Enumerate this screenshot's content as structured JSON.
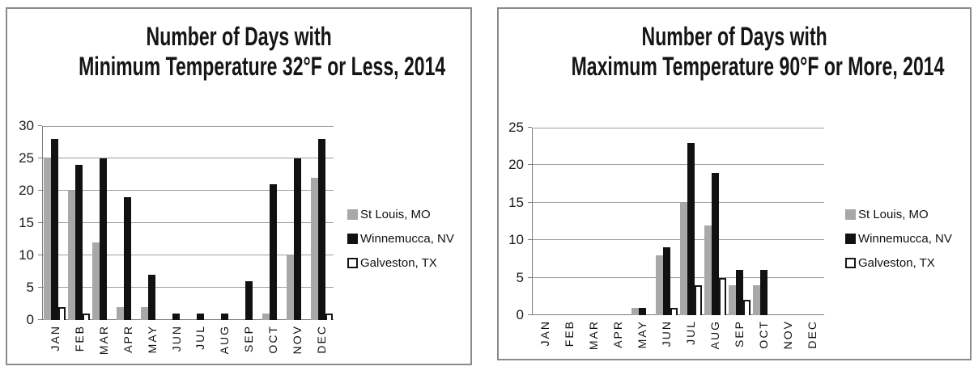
{
  "chart_data": [
    {
      "type": "bar",
      "title_line1": "Number of Days with",
      "title_line2": "Minimum Temperature 32°F or Less, 2014",
      "xlabel": "",
      "ylabel": "",
      "ylim": [
        0,
        30
      ],
      "y_step": 5,
      "y_ticks": [
        "30",
        "25",
        "20",
        "15",
        "10",
        "5",
        "0"
      ],
      "grid": true,
      "legend_position": "right",
      "categories": [
        "JAN",
        "FEB",
        "MAR",
        "APR",
        "MAY",
        "JUN",
        "JUL",
        "AUG",
        "SEP",
        "OCT",
        "NOV",
        "DEC"
      ],
      "series": [
        {
          "name": "St Louis, MO",
          "color": "#a8a8a8",
          "values": [
            25,
            20,
            12,
            2,
            2,
            0,
            0,
            0,
            0,
            1,
            10,
            22
          ]
        },
        {
          "name": "Winnemucca, NV",
          "color": "#111111",
          "values": [
            28,
            24,
            25,
            19,
            7,
            1,
            1,
            1,
            6,
            21,
            25,
            28
          ]
        },
        {
          "name": "Galveston, TX",
          "color": "#ffffff",
          "values": [
            2,
            1,
            0,
            0,
            0,
            0,
            0,
            0,
            0,
            0,
            0,
            1
          ]
        }
      ]
    },
    {
      "type": "bar",
      "title_line1": "Number of Days with",
      "title_line2": "Maximum Temperature 90°F or More, 2014",
      "xlabel": "",
      "ylabel": "",
      "ylim": [
        0,
        25
      ],
      "y_step": 5,
      "y_ticks": [
        "25",
        "20",
        "15",
        "10",
        "5",
        "0"
      ],
      "grid": true,
      "legend_position": "right",
      "categories": [
        "JAN",
        "FEB",
        "MAR",
        "APR",
        "MAY",
        "JUN",
        "JUL",
        "AUG",
        "SEP",
        "OCT",
        "NOV",
        "DEC"
      ],
      "series": [
        {
          "name": "St Louis, MO",
          "color": "#a8a8a8",
          "values": [
            0,
            0,
            0,
            0,
            1,
            8,
            15,
            12,
            4,
            4,
            0,
            0
          ]
        },
        {
          "name": "Winnemucca, NV",
          "color": "#111111",
          "values": [
            0,
            0,
            0,
            0,
            1,
            9,
            23,
            19,
            6,
            6,
            0,
            0
          ]
        },
        {
          "name": "Galveston, TX",
          "color": "#ffffff",
          "values": [
            0,
            0,
            0,
            0,
            0,
            1,
            4,
            5,
            2,
            0,
            0,
            0
          ]
        }
      ]
    }
  ],
  "colors": {
    "bar_gray": "#a8a8a8",
    "bar_black": "#111111",
    "bar_white": "#ffffff",
    "bar_white_border": "#161616",
    "gridline": "#9e9e9e",
    "axis": "#7d7d7d",
    "panel_border": "#8a8a8a",
    "text": "#151515"
  }
}
